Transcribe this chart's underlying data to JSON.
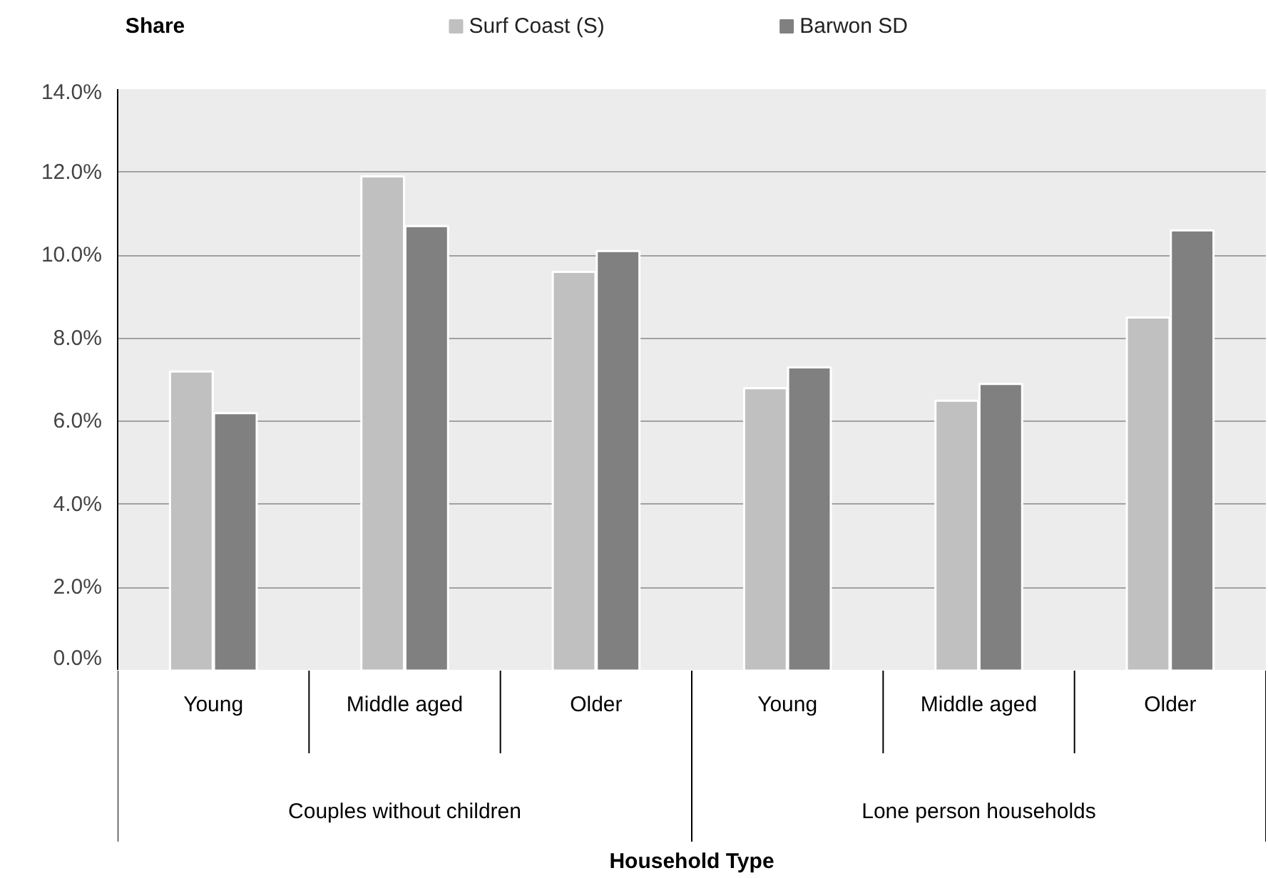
{
  "chart_data": {
    "type": "bar",
    "ylabel": "Share",
    "categories": [
      "Young",
      "Middle aged",
      "Older",
      "Young",
      "Middle aged",
      "Older"
    ],
    "annotations": [
      "Couples without children",
      "Lone person households",
      "Household Type"
    ],
    "series": [
      {
        "name": "Surf Coast (S)",
        "color": "#c0c0c0",
        "values": [
          7.2,
          11.9,
          9.6,
          6.8,
          6.5,
          8.5
        ]
      },
      {
        "name": "Barwon SD",
        "color": "#808080",
        "values": [
          6.2,
          10.7,
          10.1,
          7.3,
          6.9,
          10.6
        ]
      }
    ],
    "ylim": [
      0,
      14
    ],
    "yticks": [
      {
        "value": 0,
        "label": "0.0%"
      },
      {
        "value": 2,
        "label": "2.0%"
      },
      {
        "value": 4,
        "label": "4.0%"
      },
      {
        "value": 6,
        "label": "6.0%"
      },
      {
        "value": 8,
        "label": "8.0%"
      },
      {
        "value": 10,
        "label": "10.0%"
      },
      {
        "value": 12,
        "label": "12.0%"
      },
      {
        "value": 14,
        "label": "14.0%"
      }
    ],
    "grid": "y",
    "legend": "top"
  }
}
